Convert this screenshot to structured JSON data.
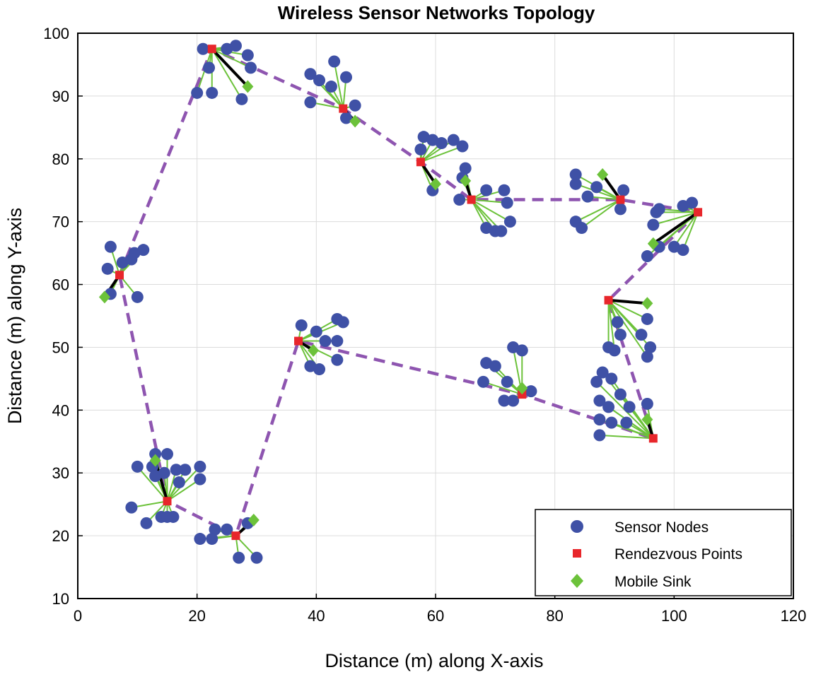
{
  "chart_data": {
    "type": "scatter",
    "title": "Wireless Sensor Networks Topology",
    "xlabel": "Distance (m) along X-axis",
    "ylabel": "Distance (m) along Y-axis",
    "xlim": [
      0,
      120
    ],
    "ylim": [
      10,
      100
    ],
    "xticks": [
      0,
      20,
      40,
      60,
      80,
      100,
      120
    ],
    "yticks": [
      10,
      20,
      30,
      40,
      50,
      60,
      70,
      80,
      90,
      100
    ],
    "xtick_labels": [
      "0",
      "20",
      "40",
      "60",
      "80",
      "100",
      "120"
    ],
    "ytick_labels": [
      "10",
      "20",
      "30",
      "40",
      "50",
      "60",
      "70",
      "80",
      "90",
      "100"
    ],
    "grid": true,
    "legend": {
      "location": "bottom-right",
      "entries": [
        "Sensor Nodes",
        "Rendezvous Points",
        "Mobile Sink"
      ]
    },
    "colors": {
      "sensor": "#3f51a6",
      "rendezvous": "#e8262b",
      "sink": "#6cc23a",
      "link": "#6cc23a",
      "sink_link": "#000000",
      "tour": "#8e55b0"
    },
    "tour_path": [
      [
        7,
        61.5
      ],
      [
        22.5,
        97.5
      ],
      [
        44.5,
        88
      ],
      [
        57.5,
        79.5
      ],
      [
        66,
        73.5
      ],
      [
        91,
        73.5
      ],
      [
        104,
        71.5
      ],
      [
        89,
        57.5
      ],
      [
        96.5,
        35.5
      ],
      [
        74.5,
        42.5
      ],
      [
        37,
        51
      ],
      [
        26.5,
        20
      ],
      [
        15,
        25.5
      ],
      [
        7,
        61.5
      ]
    ],
    "clusters": [
      {
        "rp": [
          7,
          61.5
        ],
        "sink": [
          4.5,
          58
        ],
        "sensors": [
          [
            5.5,
            66
          ],
          [
            5,
            62.5
          ],
          [
            7.5,
            63.5
          ],
          [
            9.5,
            65
          ],
          [
            11,
            65.5
          ],
          [
            9,
            64
          ],
          [
            10,
            58
          ],
          [
            5.5,
            58.5
          ]
        ]
      },
      {
        "rp": [
          22.5,
          97.5
        ],
        "sink": [
          28.5,
          91.5
        ],
        "sensors": [
          [
            21,
            97.5
          ],
          [
            25,
            97.5
          ],
          [
            26.5,
            98
          ],
          [
            28.5,
            96.5
          ],
          [
            29,
            94.5
          ],
          [
            22,
            94.5
          ],
          [
            20,
            90.5
          ],
          [
            22.5,
            90.5
          ],
          [
            27.5,
            89.5
          ]
        ]
      },
      {
        "rp": [
          44.5,
          88
        ],
        "sink": [
          46.5,
          86
        ],
        "sensors": [
          [
            39,
            93.5
          ],
          [
            40.5,
            92.5
          ],
          [
            43,
            95.5
          ],
          [
            45,
            93
          ],
          [
            42.5,
            91.5
          ],
          [
            39,
            89
          ],
          [
            46.5,
            88.5
          ],
          [
            45,
            86.5
          ]
        ]
      },
      {
        "rp": [
          57.5,
          79.5
        ],
        "sink": [
          60,
          76
        ],
        "sensors": [
          [
            58,
            83.5
          ],
          [
            59.5,
            83
          ],
          [
            61,
            82.5
          ],
          [
            63,
            83
          ],
          [
            64.5,
            82
          ],
          [
            57.5,
            81.5
          ],
          [
            59.5,
            75
          ]
        ]
      },
      {
        "rp": [
          66,
          73.5
        ],
        "sink": [
          65,
          76.5
        ],
        "sensors": [
          [
            65,
            78.5
          ],
          [
            64.5,
            77
          ],
          [
            64,
            73.5
          ],
          [
            68.5,
            75
          ],
          [
            71.5,
            75
          ],
          [
            72,
            73
          ],
          [
            72.5,
            70
          ],
          [
            68.5,
            69
          ],
          [
            70,
            68.5
          ],
          [
            71,
            68.5
          ]
        ]
      },
      {
        "rp": [
          91,
          73.5
        ],
        "sink": [
          88,
          77.5
        ],
        "sensors": [
          [
            83.5,
            77.5
          ],
          [
            83.5,
            76
          ],
          [
            87,
            75.5
          ],
          [
            85.5,
            74
          ],
          [
            91.5,
            75
          ],
          [
            91,
            72
          ],
          [
            83.5,
            70
          ],
          [
            84.5,
            69
          ]
        ]
      },
      {
        "rp": [
          104,
          71.5
        ],
        "sink": [
          96.5,
          66.5
        ],
        "sensors": [
          [
            97.5,
            72
          ],
          [
            97,
            71.5
          ],
          [
            96.5,
            69.5
          ],
          [
            101.5,
            72.5
          ],
          [
            103,
            73
          ],
          [
            97.5,
            66
          ],
          [
            100,
            66
          ],
          [
            101.5,
            65.5
          ],
          [
            95.5,
            64.5
          ]
        ]
      },
      {
        "rp": [
          89,
          57.5
        ],
        "sink": [
          95.5,
          57
        ],
        "sensors": [
          [
            90.5,
            54
          ],
          [
            91,
            52
          ],
          [
            89,
            50
          ],
          [
            90,
            49.5
          ],
          [
            95.5,
            54.5
          ],
          [
            94.5,
            52
          ],
          [
            96,
            50
          ],
          [
            95.5,
            48.5
          ]
        ]
      },
      {
        "rp": [
          96.5,
          35.5
        ],
        "sink": [
          95.5,
          38.5
        ],
        "sensors": [
          [
            88,
            46
          ],
          [
            87,
            44.5
          ],
          [
            89.5,
            45
          ],
          [
            91,
            42.5
          ],
          [
            87.5,
            41.5
          ],
          [
            89,
            40.5
          ],
          [
            92.5,
            40.5
          ],
          [
            95.5,
            41
          ],
          [
            87.5,
            38.5
          ],
          [
            89.5,
            38
          ],
          [
            92,
            38
          ],
          [
            87.5,
            36
          ]
        ]
      },
      {
        "rp": [
          74.5,
          42.5
        ],
        "sink": [
          74.5,
          43.5
        ],
        "sensors": [
          [
            68.5,
            47.5
          ],
          [
            70,
            47
          ],
          [
            73,
            50
          ],
          [
            74.5,
            49.5
          ],
          [
            68,
            44.5
          ],
          [
            72,
            44.5
          ],
          [
            76,
            43
          ],
          [
            71.5,
            41.5
          ],
          [
            73,
            41.5
          ]
        ]
      },
      {
        "rp": [
          37,
          51
        ],
        "sink": [
          39.5,
          49.5
        ],
        "sensors": [
          [
            37.5,
            53.5
          ],
          [
            40,
            52.5
          ],
          [
            43.5,
            54.5
          ],
          [
            44.5,
            54
          ],
          [
            43.5,
            51
          ],
          [
            41.5,
            51
          ],
          [
            39,
            47
          ],
          [
            40.5,
            46.5
          ],
          [
            43.5,
            48
          ]
        ]
      },
      {
        "rp": [
          15,
          25.5
        ],
        "sink": [
          13,
          32
        ],
        "sensors": [
          [
            10,
            31
          ],
          [
            13,
            33
          ],
          [
            15,
            33
          ],
          [
            12.5,
            31
          ],
          [
            14.5,
            30
          ],
          [
            16.5,
            30.5
          ],
          [
            18,
            30.5
          ],
          [
            20.5,
            31
          ],
          [
            20.5,
            29
          ],
          [
            13,
            29.5
          ],
          [
            17,
            28.5
          ],
          [
            9,
            24.5
          ],
          [
            11.5,
            22
          ],
          [
            14,
            23
          ],
          [
            15,
            23
          ],
          [
            16,
            23
          ]
        ]
      },
      {
        "rp": [
          26.5,
          20
        ],
        "sink": [
          29.5,
          22.5
        ],
        "sensors": [
          [
            23,
            21
          ],
          [
            25,
            21
          ],
          [
            28.5,
            22
          ],
          [
            20.5,
            19.5
          ],
          [
            22.5,
            19.5
          ],
          [
            27,
            16.5
          ],
          [
            30,
            16.5
          ]
        ]
      }
    ]
  }
}
